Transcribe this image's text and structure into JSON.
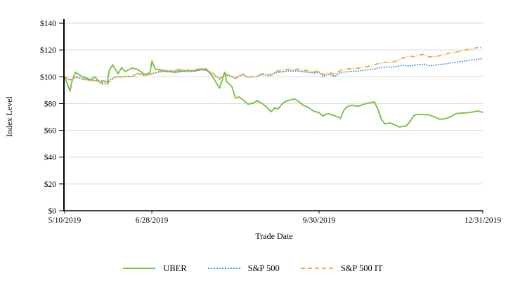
{
  "chart": {
    "background": "#ffffff",
    "grid_color": "#d9d9d9",
    "axis_color": "#000000",
    "text_color": "#000000"
  },
  "chart_data": {
    "type": "line",
    "title": "",
    "xlabel": "Trade Date",
    "ylabel": "Index Level",
    "x_unit": "calendar days since 5/10/2019",
    "xlim": [
      0,
      235
    ],
    "ylim": [
      0,
      140
    ],
    "grid": true,
    "y_ticks": [
      {
        "value": 0,
        "label": "$0"
      },
      {
        "value": 20,
        "label": "$20"
      },
      {
        "value": 40,
        "label": "$40"
      },
      {
        "value": 60,
        "label": "$60"
      },
      {
        "value": 80,
        "label": "$80"
      },
      {
        "value": 100,
        "label": "$100"
      },
      {
        "value": 120,
        "label": "$120"
      },
      {
        "value": 140,
        "label": "$140"
      }
    ],
    "x_ticks": [
      {
        "day": 0,
        "label": "5/10/2019"
      },
      {
        "day": 49,
        "label": "6/28/2019"
      },
      {
        "day": 143,
        "label": "9/30/2019"
      },
      {
        "day": 235,
        "label": "12/31/2019"
      }
    ],
    "days": [
      0,
      3,
      4,
      6,
      10,
      13,
      14,
      17,
      20,
      21,
      24,
      25,
      27,
      28,
      30,
      32,
      34,
      38,
      41,
      45,
      48,
      49,
      51,
      55,
      59,
      62,
      66,
      69,
      73,
      76,
      77,
      80,
      83,
      87,
      90,
      91,
      94,
      96,
      98,
      100,
      103,
      106,
      108,
      111,
      114,
      116,
      118,
      120,
      122,
      124,
      127,
      129,
      131,
      134,
      137,
      140,
      143,
      145,
      148,
      152,
      155,
      157,
      159,
      161,
      165,
      169,
      172,
      174,
      176,
      178,
      180,
      183,
      186,
      188,
      190,
      192,
      194,
      196,
      198,
      202,
      205,
      208,
      211,
      214,
      217,
      220,
      223,
      226,
      229,
      232,
      235
    ],
    "series": [
      {
        "name": "UBER",
        "color": "#79C143",
        "style": "solid",
        "values": [
          100,
          89.2,
          96.1,
          103.4,
          100,
          98.7,
          97.4,
          99.9,
          95.7,
          97.2,
          96.2,
          104.5,
          109,
          106.5,
          102.3,
          106.8,
          103.9,
          106.5,
          105.5,
          101.7,
          103,
          111.6,
          105.8,
          104.9,
          104,
          103.2,
          104.1,
          104.9,
          104.4,
          105.3,
          105.8,
          104.9,
          100.5,
          91.5,
          103.4,
          96.4,
          92.6,
          84.1,
          85,
          83,
          79.5,
          80.4,
          82.1,
          80,
          76.9,
          73.9,
          76.8,
          76,
          79.4,
          81.6,
          82.7,
          83.4,
          82,
          78.7,
          77,
          74.3,
          73.2,
          70.8,
          72.5,
          70.8,
          69,
          75.2,
          77.8,
          78.7,
          78,
          79.8,
          80.7,
          81.3,
          76,
          68.2,
          64.8,
          65.5,
          63.8,
          62.5,
          62.9,
          63.3,
          66.4,
          70.8,
          72,
          71.7,
          71.5,
          69.9,
          68.2,
          68.7,
          70.2,
          72.5,
          72.9,
          73.1,
          73.6,
          74.5,
          73.4
        ]
      },
      {
        "name": "S&P 500",
        "color": "#4A90D8",
        "style": "dotted",
        "values": [
          100,
          97.6,
          98.4,
          99.8,
          98.6,
          97.9,
          98.1,
          97.3,
          96.8,
          95.5,
          95.2,
          97.3,
          98.7,
          99.7,
          100.2,
          99.9,
          100.4,
          100.3,
          102.5,
          101.2,
          101.5,
          102.1,
          102.9,
          104,
          103.6,
          104.3,
          104.6,
          103.6,
          104.3,
          104.9,
          105.3,
          104.6,
          102.5,
          98.7,
          102,
          101.3,
          100,
          98.6,
          100.3,
          101.5,
          99.8,
          99.9,
          100.2,
          101.6,
          101.2,
          100.9,
          102.8,
          103.4,
          103.6,
          104.1,
          104.4,
          104.3,
          104.4,
          103.8,
          103.3,
          102.8,
          103.3,
          100.2,
          102,
          100.4,
          103.1,
          103.5,
          103.8,
          104,
          104.3,
          104.9,
          105.5,
          105.7,
          106.6,
          106.8,
          107.2,
          107.1,
          107.5,
          108.1,
          108.6,
          108.2,
          108,
          108.4,
          109,
          109.4,
          108.3,
          108.6,
          109.2,
          109.6,
          110.3,
          110.8,
          111.4,
          112,
          112.6,
          113,
          113.5
        ]
      },
      {
        "name": "S&P 500 IT",
        "color": "#F2A93B",
        "style": "dashdot",
        "values": [
          100,
          97.2,
          98.2,
          99.7,
          98.2,
          97.3,
          97.7,
          96.8,
          96,
          94.6,
          93.8,
          96.4,
          98.2,
          99.4,
          100,
          99.6,
          100.2,
          100.1,
          102.5,
          101,
          101.6,
          102.3,
          103.4,
          104.8,
          104.3,
          105.3,
          105.8,
          104.3,
          105.1,
          106,
          106.6,
          105.6,
          102.8,
          98,
          102.5,
          101.8,
          100.4,
          98.9,
          100.8,
          102.2,
          99.6,
          100.1,
          100.5,
          102.3,
          101.8,
          101.4,
          103.6,
          104.4,
          104.7,
          105.3,
          105.8,
          105.5,
          105.7,
          105,
          104.4,
          103.8,
          104.5,
          101.6,
          103.3,
          101.9,
          104.8,
          105.3,
          105.8,
          106.1,
          106.4,
          107.2,
          108.3,
          108.7,
          109.8,
          110.3,
          110.9,
          110.7,
          111.5,
          112.8,
          114,
          114.8,
          115.5,
          115,
          115.8,
          116.8,
          114.8,
          115,
          115.8,
          117,
          117.8,
          118.3,
          119.2,
          120.2,
          121,
          121.8,
          122.2
        ]
      }
    ],
    "legend": {
      "position": "bottom",
      "labels": [
        "UBER",
        "S&P 500",
        "S&P 500 IT"
      ]
    }
  }
}
